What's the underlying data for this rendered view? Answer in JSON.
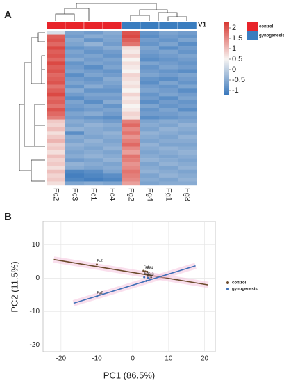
{
  "chart_data": [
    {
      "type": "heatmap",
      "panel_label": "A",
      "annotation_label": "V1",
      "columns": [
        "Fc2",
        "Fc3",
        "Fc1",
        "Fc4",
        "Fg2",
        "Fg4",
        "Fg1",
        "Fg3"
      ],
      "column_groups": [
        0,
        0,
        0,
        0,
        1,
        1,
        1,
        1
      ],
      "groups": [
        {
          "name": "control",
          "color": "#e8242a"
        },
        {
          "name": "gynogenesis",
          "color": "#3a7dbf"
        }
      ],
      "colorscale": [
        [
          -1.2,
          "#3a78bc"
        ],
        [
          0.5,
          "#f7f4f2"
        ],
        [
          2.3,
          "#d7342e"
        ]
      ],
      "clim": [
        -1.2,
        2.3
      ],
      "cticks": [
        2,
        1.5,
        1,
        0.5,
        0,
        -0.5,
        -1
      ],
      "values": [
        [
          0.2,
          -0.6,
          -0.7,
          -0.5,
          2.0,
          -0.8,
          -0.6,
          -0.7
        ],
        [
          1.9,
          -0.7,
          -0.5,
          -0.6,
          2.1,
          -0.9,
          -0.7,
          -0.8
        ],
        [
          2.0,
          -0.5,
          -0.8,
          -0.6,
          1.9,
          -0.7,
          -0.8,
          -0.6
        ],
        [
          1.8,
          -0.6,
          -0.4,
          -0.7,
          1.7,
          -0.8,
          -0.6,
          -0.9
        ],
        [
          2.1,
          -0.8,
          -0.7,
          -0.5,
          0.7,
          -0.6,
          -0.9,
          -0.7
        ],
        [
          1.9,
          -0.6,
          -0.8,
          -0.7,
          0.6,
          -0.7,
          -0.6,
          -0.8
        ],
        [
          2.0,
          -0.7,
          -0.6,
          -0.8,
          0.8,
          -0.8,
          -0.7,
          -0.6
        ],
        [
          1.8,
          -0.5,
          -0.7,
          -0.6,
          0.5,
          -0.9,
          -0.8,
          -0.7
        ],
        [
          2.1,
          -0.8,
          -0.6,
          -0.7,
          0.7,
          -0.6,
          -0.7,
          -0.8
        ],
        [
          1.9,
          -0.7,
          -0.9,
          -0.6,
          0.6,
          -0.8,
          -0.6,
          -0.7
        ],
        [
          2.0,
          -0.6,
          -0.7,
          -0.8,
          0.5,
          -0.7,
          -0.8,
          -0.9
        ],
        [
          1.8,
          -0.9,
          -0.6,
          -0.7,
          0.8,
          -0.6,
          -0.7,
          -0.6
        ],
        [
          1.9,
          -0.7,
          -0.8,
          -0.5,
          0.7,
          -0.8,
          -0.9,
          -0.7
        ],
        [
          2.0,
          -0.6,
          -0.7,
          -0.6,
          0.6,
          -0.9,
          -0.6,
          -0.8
        ],
        [
          1.7,
          -0.8,
          -0.5,
          -0.7,
          0.7,
          -0.7,
          -0.8,
          -0.6
        ],
        [
          1.9,
          -0.5,
          -0.8,
          -0.8,
          0.5,
          -0.6,
          -0.7,
          -0.9
        ],
        [
          2.1,
          -0.7,
          -0.6,
          -0.6,
          0.8,
          -0.8,
          -0.6,
          -0.7
        ],
        [
          1.8,
          -0.9,
          -0.7,
          -0.7,
          0.6,
          -0.7,
          -0.9,
          -0.6
        ],
        [
          1.9,
          -0.6,
          -0.9,
          -0.5,
          0.7,
          -0.9,
          -0.7,
          -0.8
        ],
        [
          1.7,
          -0.7,
          -0.6,
          -0.8,
          0.5,
          -0.6,
          -0.8,
          -0.7
        ],
        [
          2.0,
          -0.8,
          -0.7,
          -0.6,
          0.6,
          -0.8,
          -0.6,
          -0.9
        ],
        [
          1.8,
          -0.6,
          -0.5,
          -0.7,
          0.8,
          -0.7,
          -0.7,
          -0.6
        ],
        [
          1.6,
          -0.7,
          -0.8,
          -0.9,
          0.7,
          -0.9,
          -0.8,
          -0.7
        ],
        [
          0.9,
          -0.5,
          -0.6,
          -0.7,
          1.6,
          -0.6,
          -0.5,
          -0.6
        ],
        [
          0.8,
          -0.6,
          -0.4,
          -0.5,
          1.8,
          -0.5,
          -0.6,
          -0.4
        ],
        [
          1.0,
          -0.4,
          -0.5,
          -0.6,
          1.5,
          -0.6,
          -0.4,
          -0.5
        ],
        [
          0.7,
          -0.9,
          -0.5,
          -0.4,
          1.7,
          -0.4,
          -0.5,
          -0.6
        ],
        [
          0.9,
          -0.5,
          -0.6,
          -0.5,
          1.4,
          -0.5,
          -0.6,
          -0.4
        ],
        [
          1.1,
          -0.6,
          -0.4,
          -0.6,
          1.6,
          -0.6,
          -0.5,
          -0.5
        ],
        [
          0.8,
          -0.4,
          -0.5,
          -0.5,
          1.8,
          -0.4,
          -0.6,
          -0.6
        ],
        [
          0.9,
          -0.5,
          -0.6,
          -0.4,
          1.5,
          -0.5,
          -0.4,
          -0.5
        ],
        [
          0.7,
          -0.6,
          -0.5,
          -0.6,
          1.3,
          -0.6,
          -0.5,
          -0.4
        ],
        [
          1.0,
          -0.5,
          -0.4,
          -0.5,
          1.7,
          -0.5,
          -0.6,
          -0.5
        ],
        [
          0.8,
          -0.7,
          -0.6,
          -0.4,
          1.6,
          -0.4,
          -0.5,
          -0.6
        ],
        [
          0.9,
          -0.4,
          -0.5,
          -0.6,
          1.4,
          -0.6,
          -0.4,
          -0.5
        ],
        [
          0.7,
          -0.5,
          -0.6,
          -0.5,
          1.5,
          -0.5,
          -0.6,
          -0.4
        ],
        [
          1.0,
          -1.0,
          -0.9,
          -0.6,
          1.7,
          -0.4,
          -0.5,
          -0.6
        ],
        [
          0.8,
          -1.1,
          -1.0,
          -0.9,
          1.6,
          -0.6,
          -0.4,
          -0.5
        ],
        [
          0.9,
          -1.0,
          -1.1,
          -1.0,
          1.5,
          -0.5,
          -0.6,
          -0.4
        ],
        [
          0.7,
          -0.6,
          -0.5,
          -0.6,
          1.3,
          -0.6,
          -0.5,
          -0.5
        ]
      ]
    },
    {
      "type": "scatter",
      "panel_label": "B",
      "x_label": "PC1 (86.5%)",
      "y_label": "PC2 (11.5%)",
      "xlim": [
        -25,
        23
      ],
      "xticks": [
        -20,
        -10,
        0,
        10,
        20
      ],
      "ylim": [
        -22,
        17
      ],
      "yticks": [
        -20,
        -10,
        0,
        10
      ],
      "grid": true,
      "legend": "right",
      "series": [
        {
          "name": "control",
          "color": "#6b4a2b",
          "line_x": [
            -22,
            21
          ],
          "line_y": [
            5.6,
            -2
          ]
        },
        {
          "name": "gynogenesis",
          "color": "#3d6fb6",
          "line_x": [
            -16.5,
            17.5
          ],
          "line_y": [
            -7.5,
            3.7
          ]
        }
      ],
      "points": [
        {
          "label": "Fc2",
          "x": -10,
          "y": 4.1,
          "group": 0
        },
        {
          "label": "Fc1",
          "x": 3,
          "y": 2.2,
          "group": 0
        },
        {
          "label": "Fc3",
          "x": 3.5,
          "y": 2.0,
          "group": 0
        },
        {
          "label": "Fc4",
          "x": 4,
          "y": 1.9,
          "group": 0
        },
        {
          "label": "Fg2",
          "x": -10,
          "y": -5.5,
          "group": 1
        },
        {
          "label": "Fg1",
          "x": 3.2,
          "y": 0.3,
          "group": 1
        },
        {
          "label": "Fg3",
          "x": 4.2,
          "y": 0.1,
          "group": 1
        },
        {
          "label": "Fg4",
          "x": 3.8,
          "y": -0.8,
          "group": 1
        }
      ]
    }
  ]
}
